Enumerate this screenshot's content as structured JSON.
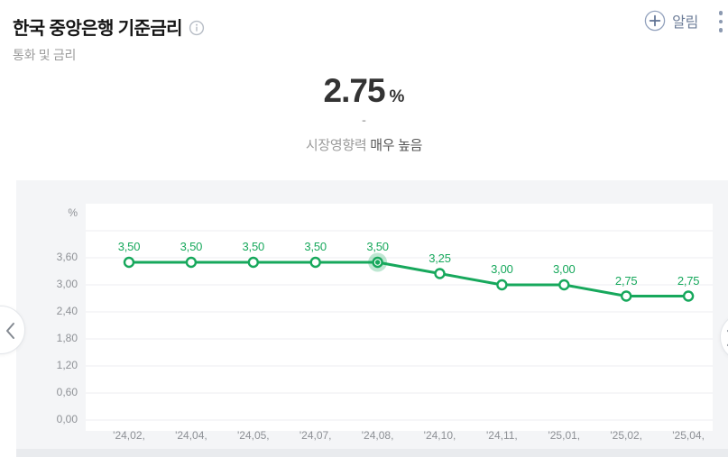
{
  "header": {
    "title": "한국 중앙은행 기준금리",
    "subtitle": "통화 및 금리",
    "alert_label": "알림"
  },
  "hero": {
    "value": "2.75",
    "unit": "%",
    "change": "-",
    "impact_label": "시장영향력",
    "impact_value": "매우 높음"
  },
  "icons": {
    "info": "info-circle",
    "plus": "plus-circle",
    "more": "kebab-vertical-dots",
    "prev": "chevron-left",
    "next": "chevron-right"
  },
  "colors": {
    "accent_green": "#17a85c",
    "halo_green": "rgba(23,168,92,0.28)",
    "card_bg": "#f4f5f7",
    "grid_line": "#eceef0",
    "axis_text": "#8e9196",
    "alert_blue_gray": "#6e7e99"
  },
  "chart_data": {
    "type": "line",
    "title": "",
    "ylabel": "%",
    "unit_label": "%",
    "categories": [
      "'24,02,",
      "'24,04,",
      "'24,05,",
      "'24,07,",
      "'24,08,",
      "'24,10,",
      "'24,11,",
      "'25,01,",
      "'25,02,",
      "'25,04,"
    ],
    "values": [
      3.5,
      3.5,
      3.5,
      3.5,
      3.5,
      3.25,
      3.0,
      3.0,
      2.75,
      2.75
    ],
    "point_labels": [
      "3,50",
      "3,50",
      "3,50",
      "3,50",
      "3,50",
      "3,25",
      "3,00",
      "3,00",
      "2,75",
      "2,75"
    ],
    "y_ticks": [
      "3,60",
      "3,00",
      "2,40",
      "1,80",
      "1,20",
      "0,60",
      "0,00"
    ],
    "grid_levels": [
      4.2,
      3.6,
      3.0,
      2.4,
      1.8,
      1.2,
      0.6,
      0.0
    ],
    "ylim": [
      0,
      4.8
    ],
    "selected_index": 4,
    "grid": true,
    "legend": "none",
    "line_color": "#17a85c"
  }
}
